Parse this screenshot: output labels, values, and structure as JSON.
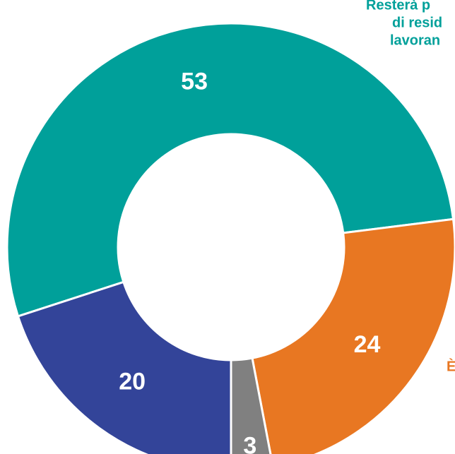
{
  "chart_data": {
    "type": "donut",
    "values": [
      53,
      24,
      3,
      20
    ],
    "colors": [
      "#00a09a",
      "#e87722",
      "#808080",
      "#334499"
    ],
    "annotations": [
      {
        "lines": [
          "Resterà p",
          "di resid",
          "lavoran"
        ],
        "color": "#00a09a"
      },
      {
        "lines": [
          "È"
        ],
        "color": "#e87722"
      }
    ]
  }
}
